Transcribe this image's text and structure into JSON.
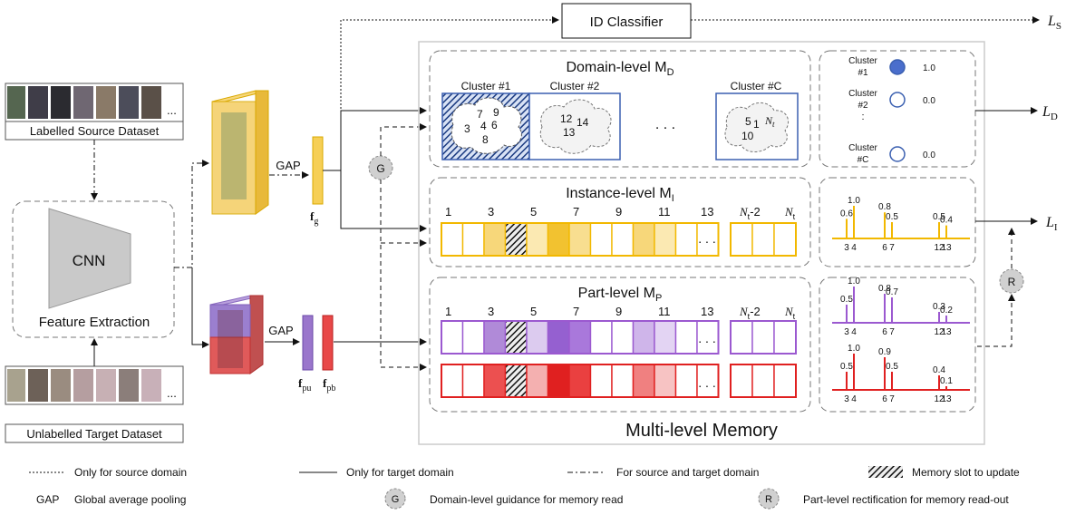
{
  "id_classifier": "ID Classifier",
  "outputs": {
    "ls": "L",
    "ls_sub": "S",
    "ld": "L",
    "ld_sub": "D",
    "li": "L",
    "li_sub": "I"
  },
  "source_label": "Labelled Source Dataset",
  "target_label": "Unlabelled Target Dataset",
  "ellipsis": "...",
  "extractor": {
    "cnn": "CNN",
    "caption": "Feature Extraction"
  },
  "gap1": "GAP",
  "gap2": "GAP",
  "features": {
    "fg": "f",
    "fg_sub": "g",
    "fpu": "f",
    "fpu_sub": "pu",
    "fpb": "f",
    "fpb_sub": "pb"
  },
  "markers": {
    "g": "G",
    "r": "R"
  },
  "memory_title": "Multi-level Memory",
  "domain": {
    "title": "Domain-level M",
    "title_sub": "D",
    "dots": ". . .",
    "clusters": [
      {
        "label": "Cluster #1",
        "numbers": [
          "7",
          "9",
          "3",
          "4",
          "6",
          "8"
        ]
      },
      {
        "label": "Cluster #2",
        "numbers": [
          "12",
          "14",
          "13"
        ]
      },
      {
        "label": "Cluster #C",
        "numbers": [
          "5",
          "1",
          "N",
          "10"
        ],
        "n_sub": "t"
      }
    ]
  },
  "instance": {
    "title": "Instance-level M",
    "title_sub": "I",
    "indices": [
      "1",
      "3",
      "5",
      "7",
      "9",
      "11",
      "13",
      "N",
      "-2",
      "N"
    ],
    "n_sub": "t",
    "dots": ". . ."
  },
  "part": {
    "title": "Part-level M",
    "title_sub": "P",
    "indices": [
      "1",
      "3",
      "5",
      "7",
      "9",
      "11",
      "13",
      "N",
      "-2",
      "N"
    ],
    "n_sub": "t",
    "dots": ". . ."
  },
  "cluster_probs": [
    {
      "label1": "Cluster",
      "label2": "#1",
      "value": "1.0"
    },
    {
      "label1": "Cluster",
      "label2": "#2",
      "value": "0.0"
    },
    {
      "label1": "Cluster",
      "label2": "#C",
      "value": "0.0"
    }
  ],
  "instance_bars": [
    {
      "slot": "3",
      "value": 0.6,
      "text": "0.6"
    },
    {
      "slot": "4",
      "value": 1.0,
      "text": "1.0"
    },
    {
      "slot": "6",
      "value": 0.8,
      "text": "0.8"
    },
    {
      "slot": "7",
      "value": 0.5,
      "text": "0.5"
    },
    {
      "slot": "12",
      "value": 0.5,
      "text": "0.5"
    },
    {
      "slot": "13",
      "value": 0.4,
      "text": "0.4"
    }
  ],
  "part_bars_upper": [
    {
      "slot": "3",
      "value": 0.5,
      "text": "0.5"
    },
    {
      "slot": "4",
      "value": 1.0,
      "text": "1.0"
    },
    {
      "slot": "6",
      "value": 0.8,
      "text": "0.8"
    },
    {
      "slot": "7",
      "value": 0.7,
      "text": "0.7"
    },
    {
      "slot": "12",
      "value": 0.3,
      "text": "0.3"
    },
    {
      "slot": "13",
      "value": 0.2,
      "text": "0.2"
    }
  ],
  "part_bars_lower": [
    {
      "slot": "3",
      "value": 0.5,
      "text": "0.5"
    },
    {
      "slot": "4",
      "value": 1.0,
      "text": "1.0"
    },
    {
      "slot": "6",
      "value": 0.9,
      "text": "0.9"
    },
    {
      "slot": "7",
      "value": 0.5,
      "text": "0.5"
    },
    {
      "slot": "12",
      "value": 0.4,
      "text": "0.4"
    },
    {
      "slot": "13",
      "value": 0.1,
      "text": "0.1"
    }
  ],
  "legend": {
    "dotted": "Only for source domain",
    "solid": "Only for target domain",
    "dashdot": "For source and target domain",
    "hatched": "Memory slot to update",
    "gap_key": "GAP",
    "gap_desc": "Global average pooling",
    "g_desc": "Domain-level guidance for memory read",
    "r_desc": "Part-level rectification for memory read-out"
  },
  "colors": {
    "yellow": "#f4c430",
    "purple": "#9b59d0",
    "red": "#e02020",
    "blue": "#3a5fb0"
  }
}
